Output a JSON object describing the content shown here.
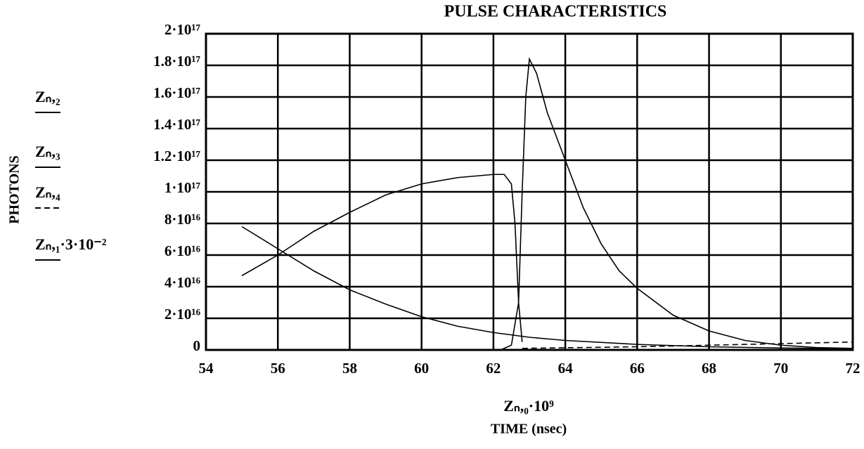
{
  "chart_data": {
    "type": "line",
    "title": "PULSE CHARACTERISTICS",
    "y_label": "PHOTONS",
    "x_label": "Zₙ,₀·10⁹",
    "x_sublabel": "TIME (nsec)",
    "xlim": [
      54,
      72
    ],
    "xticks": [
      54,
      56,
      58,
      60,
      62,
      64,
      66,
      68,
      70,
      72
    ],
    "ylim": [
      0,
      2e+17
    ],
    "yticks": [
      0,
      {
        "value": 2e+16,
        "label": "2·10¹⁶"
      },
      {
        "value": 4e+16,
        "label": "4·10¹⁶"
      },
      {
        "value": 6e+16,
        "label": "6·10¹⁶"
      },
      {
        "value": 8e+16,
        "label": "8·10¹⁶"
      },
      {
        "value": 1e+17,
        "label": "1·10¹⁷"
      },
      {
        "value": 1.2e+17,
        "label": "1.2·10¹⁷"
      },
      {
        "value": 1.4e+17,
        "label": "1.4·10¹⁷"
      },
      {
        "value": 1.6e+17,
        "label": "1.6·10¹⁷"
      },
      {
        "value": 1.8e+17,
        "label": "1.8·10¹⁷"
      },
      {
        "value": 2e+17,
        "label": "2·10¹⁷"
      }
    ],
    "grid": true,
    "series": [
      {
        "name": "Zₙ,₂",
        "color": "#000000",
        "dash": "solid",
        "x": [
          55,
          56,
          57,
          58,
          59,
          60,
          61,
          62,
          62.3,
          62.5,
          62.6,
          62.7,
          62.8
        ],
        "values": [
          4.7e+16,
          6e+16,
          7.5e+16,
          8.7e+16,
          9.8e+16,
          1.05e+17,
          1.09e+17,
          1.11e+17,
          1.11e+17,
          1.05e+17,
          8e+16,
          3e+16,
          5000000000000000.0
        ]
      },
      {
        "name": "Zₙ,₃",
        "color": "#000000",
        "dash": "solid",
        "x": [
          62.2,
          62.5,
          62.7,
          62.8,
          62.9,
          63.0,
          63.2,
          63.5,
          64,
          64.5,
          65,
          65.5,
          66,
          67,
          68,
          69,
          70,
          71,
          72
        ],
        "values": [
          0,
          3000000000000000.0,
          3e+16,
          1e+17,
          1.6e+17,
          1.84e+17,
          1.75e+17,
          1.5e+17,
          1.2e+17,
          9e+16,
          6.7e+16,
          5e+16,
          3.9e+16,
          2.2e+16,
          1.2e+16,
          6000000000000000.0,
          3000000000000000.0,
          1500000000000000.0,
          1000000000000000.0
        ]
      },
      {
        "name": "Zₙ,₄",
        "color": "#000000",
        "dash": "dashed",
        "x": [
          62.8,
          66,
          70,
          72
        ],
        "values": [
          1000000000000000.0,
          2000000000000000.0,
          4000000000000000.0,
          5000000000000000.0
        ]
      },
      {
        "name": "Zₙ,₁·3·10⁻²",
        "color": "#000000",
        "dash": "solid",
        "x": [
          55,
          56,
          57,
          58,
          59,
          60,
          61,
          62,
          63,
          64,
          66,
          68,
          70,
          72
        ],
        "values": [
          7.8e+16,
          6.4e+16,
          5e+16,
          3.8e+16,
          2.9e+16,
          2.1e+16,
          1.5e+16,
          1.1e+16,
          8000000000000000.0,
          6000000000000000.0,
          3500000000000000.0,
          2000000000000000.0,
          1200000000000000.0,
          800000000000000.0
        ]
      }
    ]
  }
}
